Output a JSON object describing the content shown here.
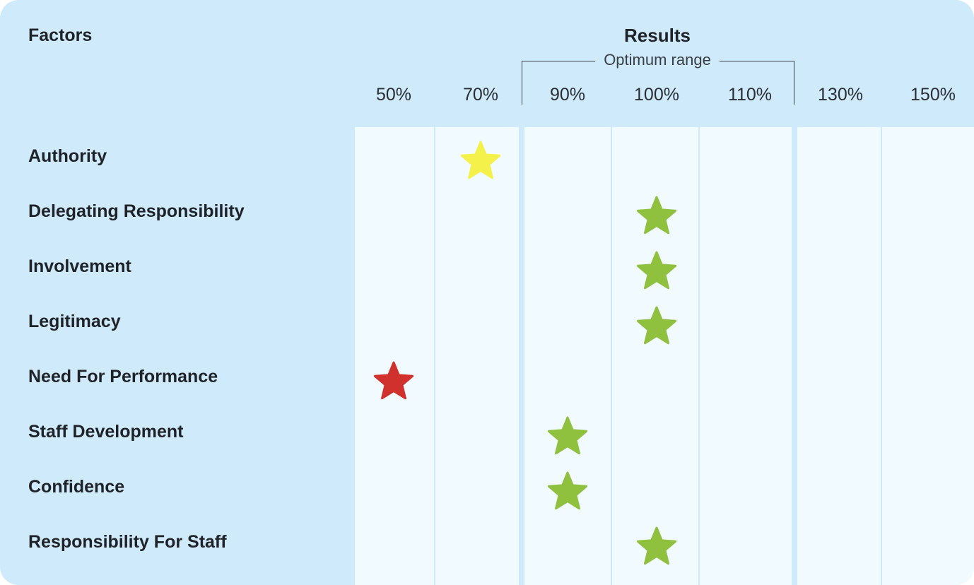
{
  "header": {
    "factors_label": "Factors",
    "results_label": "Results",
    "optimum_range_label": "Optimum range"
  },
  "colors": {
    "background": "#cfeafb",
    "plot_background": "#f1fafe",
    "below_range_far": "#d0312d",
    "below_range_near": "#f4f24a",
    "in_range": "#8fc13f"
  },
  "chart_data": {
    "type": "scatter",
    "marker": "star",
    "x_categories": [
      "50%",
      "70%",
      "90%",
      "100%",
      "110%",
      "130%",
      "150%"
    ],
    "optimum_range": [
      "90%",
      "110%"
    ],
    "categories": [
      "Authority",
      "Delegating Responsibility",
      "Involvement",
      "Legitimacy",
      "Need For Performance",
      "Staff Development",
      "Confidence",
      "Responsibility For Staff"
    ],
    "values": [
      "70%",
      "100%",
      "100%",
      "100%",
      "50%",
      "90%",
      "90%",
      "100%"
    ],
    "marker_colors": [
      "#f4f24a",
      "#8fc13f",
      "#8fc13f",
      "#8fc13f",
      "#d0312d",
      "#8fc13f",
      "#8fc13f",
      "#8fc13f"
    ]
  }
}
